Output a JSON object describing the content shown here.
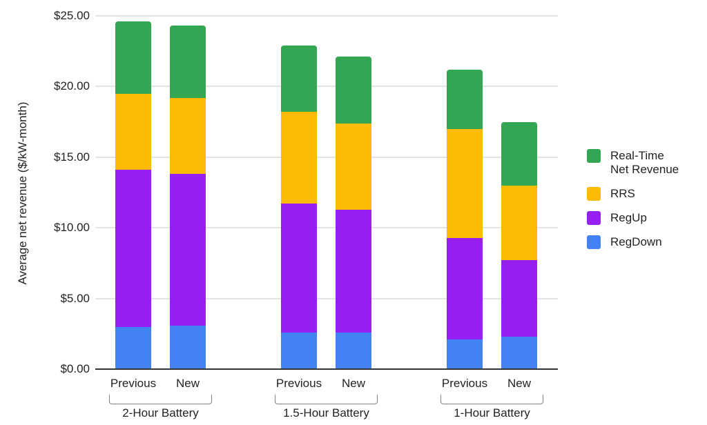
{
  "chart_data": {
    "type": "bar",
    "stacked": true,
    "title": "",
    "xlabel": "",
    "ylabel": "Average net revenue ($/kW-month)",
    "ylim": [
      0,
      25
    ],
    "grid": true,
    "yticks": [
      {
        "value": 25,
        "label": "$25.00"
      },
      {
        "value": 20,
        "label": "$20.00"
      },
      {
        "value": 15,
        "label": "$15.00"
      },
      {
        "value": 10,
        "label": "$10.00"
      },
      {
        "value": 5,
        "label": "$5.00"
      },
      {
        "value": 0,
        "label": "$0.00"
      }
    ],
    "groups": [
      {
        "label": "2-Hour Battery",
        "bars": [
          "Previous",
          "New"
        ]
      },
      {
        "label": "1.5-Hour Battery",
        "bars": [
          "Previous",
          "New"
        ]
      },
      {
        "label": "1-Hour Battery",
        "bars": [
          "Previous",
          "New"
        ]
      }
    ],
    "bar_labels": [
      "Previous",
      "New",
      "Previous",
      "New",
      "Previous",
      "New"
    ],
    "series_bottom_to_top": [
      {
        "name": "RegDown",
        "color": "#4382F2",
        "values": [
          3.0,
          3.1,
          2.6,
          2.6,
          2.1,
          2.3
        ]
      },
      {
        "name": "RegUp",
        "color": "#9620F2",
        "values": [
          11.1,
          10.7,
          9.1,
          8.7,
          7.2,
          5.4
        ]
      },
      {
        "name": "RRS",
        "color": "#FBBB04",
        "values": [
          5.4,
          5.4,
          6.5,
          6.1,
          7.7,
          5.3
        ]
      },
      {
        "name": "Real-Time Net Revenue",
        "color": "#33A653",
        "values": [
          5.1,
          5.1,
          4.7,
          4.7,
          4.2,
          4.5
        ]
      }
    ],
    "bar_totals": [
      24.6,
      24.3,
      22.9,
      22.1,
      21.2,
      17.5
    ],
    "legend": {
      "position": "right",
      "items": [
        {
          "label": "Real-Time\nNet Revenue",
          "color": "#33A653"
        },
        {
          "label": "RRS",
          "color": "#FBBB04"
        },
        {
          "label": "RegUp",
          "color": "#9620F2"
        },
        {
          "label": "RegDown",
          "color": "#4382F2"
        }
      ]
    }
  }
}
